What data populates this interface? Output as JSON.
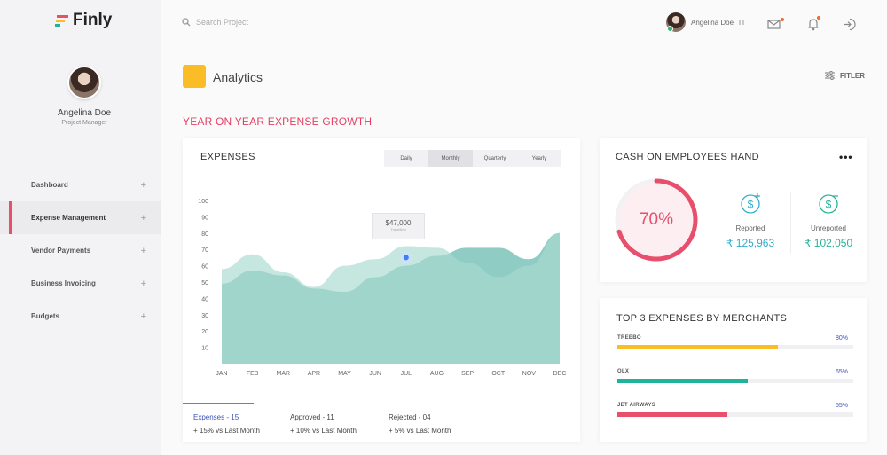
{
  "app": {
    "logo": "Finly"
  },
  "sidebar": {
    "user": {
      "name": "Angelina Doe",
      "role": "Project Manager"
    },
    "items": [
      {
        "label": "Dashboard"
      },
      {
        "label": "Expense Management",
        "active": true
      },
      {
        "label": "Vendor Payments"
      },
      {
        "label": "Business Invoicing"
      },
      {
        "label": "Budgets"
      }
    ],
    "plus": "+"
  },
  "header": {
    "search_placeholder": "Search Project",
    "user_name": "Angelina Doe"
  },
  "page": {
    "title": "Analytics",
    "filter_label": "FITLER",
    "section_title": "YEAR ON YEAR EXPENSE GROWTH"
  },
  "expenses": {
    "title": "EXPENSES",
    "tabs": [
      "Daily",
      "Monthly",
      "Quarterly",
      "Yearly"
    ],
    "active_tab": "Monthly",
    "tooltip": {
      "value": "$47,000",
      "sub": "Travelling"
    },
    "stats": [
      {
        "label": "Expenses - 15",
        "sub": "+ 15% vs Last Month"
      },
      {
        "label": "Approved - 11",
        "sub": "+ 10% vs Last Month"
      },
      {
        "label": "Rejected - 04",
        "sub": "+ 5% vs Last Month"
      }
    ]
  },
  "chart_data": {
    "type": "area",
    "categories": [
      "JAN",
      "FEB",
      "MAR",
      "APR",
      "MAY",
      "JUN",
      "JUL",
      "AUG",
      "SEP",
      "OCT",
      "NOV",
      "DEC"
    ],
    "yticks": [
      10,
      20,
      30,
      40,
      50,
      60,
      70,
      80,
      90,
      100
    ],
    "ylim": [
      0,
      100
    ],
    "series": [
      {
        "values": [
          49,
          57,
          54,
          46,
          44,
          53,
          60,
          66,
          71,
          71,
          64,
          80
        ],
        "color": "#8fcdc4"
      },
      {
        "values": [
          58,
          67,
          56,
          47,
          60,
          64,
          72,
          71,
          62,
          53,
          60,
          80
        ],
        "color": "#a8d8d0"
      }
    ],
    "highlight": {
      "category": "JUL",
      "value": 65
    }
  },
  "cash": {
    "title": "CASH ON EMPLOYEES HAND",
    "more": "•••",
    "percent_label": "70%",
    "percent": 70,
    "reported_label": "Reported",
    "reported_value": "₹ 125,963",
    "unreported_label": "Unreported",
    "unreported_value": "₹ 102,050",
    "colors": {
      "ring": "#e84f6c",
      "reported": "#2faecb",
      "unreported": "#27b399"
    }
  },
  "merchants": {
    "title": "TOP 3 EXPENSES BY MERCHANTS",
    "items": [
      {
        "name": "TREEBO",
        "pct_label": "80%",
        "pct": 80,
        "color": "#fbbd26"
      },
      {
        "name": "OLX",
        "pct_label": "65%",
        "pct": 65,
        "color": "#1fb39b"
      },
      {
        "name": "JET AIRWAYS",
        "pct_label": "55%",
        "pct": 55,
        "color": "#e84f6c"
      }
    ]
  }
}
